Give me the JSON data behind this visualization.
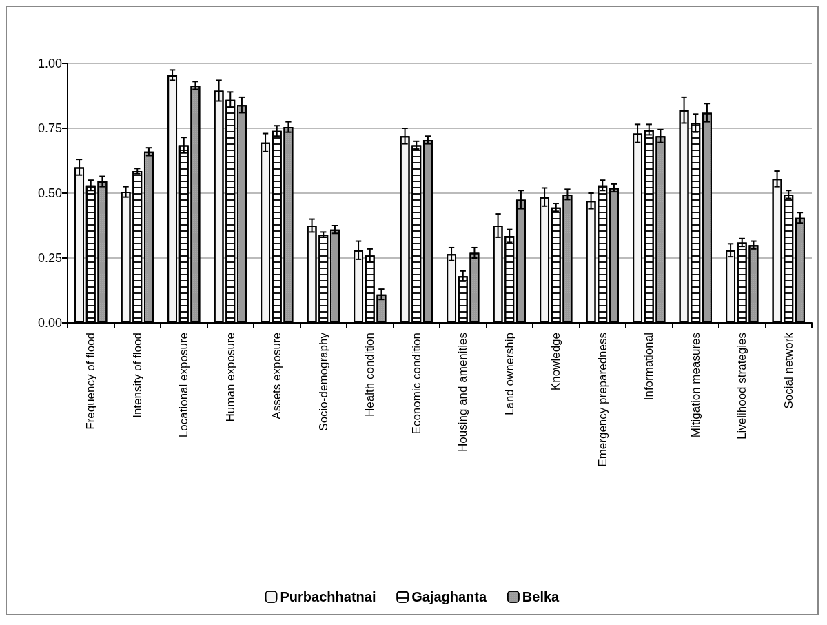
{
  "chart_data": {
    "type": "bar",
    "categories": [
      "Frequency of flood",
      "Intensity of flood",
      "Locational exposure",
      "Human exposure",
      "Assets exposure",
      "Socio-demography",
      "Health condition",
      "Economic condition",
      "Housing and amenities",
      "Land ownership",
      "Knowledge",
      "Emergency preparedness",
      "Informational",
      "Mitigation measures",
      "Livelihood strategies",
      "Social network"
    ],
    "series": [
      {
        "name": "Purbachhatnai",
        "color": "#f4f4f4",
        "values": [
          0.6,
          0.505,
          0.955,
          0.895,
          0.695,
          0.375,
          0.28,
          0.72,
          0.265,
          0.375,
          0.485,
          0.47,
          0.73,
          0.82,
          0.28,
          0.555
        ],
        "errors": [
          0.03,
          0.02,
          0.02,
          0.04,
          0.035,
          0.025,
          0.035,
          0.03,
          0.025,
          0.045,
          0.035,
          0.03,
          0.035,
          0.05,
          0.025,
          0.03
        ]
      },
      {
        "name": "Gajaghanta",
        "color": "#ffffff",
        "values": [
          0.53,
          0.585,
          0.685,
          0.86,
          0.74,
          0.34,
          0.26,
          0.685,
          0.18,
          0.335,
          0.445,
          0.53,
          0.745,
          0.77,
          0.31,
          0.495
        ],
        "errors": [
          0.02,
          0.01,
          0.03,
          0.03,
          0.02,
          0.01,
          0.025,
          0.015,
          0.02,
          0.025,
          0.015,
          0.02,
          0.02,
          0.035,
          0.015,
          0.015
        ]
      },
      {
        "name": "Belka",
        "color": "#9a9a9a",
        "values": [
          0.545,
          0.66,
          0.915,
          0.84,
          0.755,
          0.36,
          0.11,
          0.705,
          0.27,
          0.475,
          0.495,
          0.52,
          0.72,
          0.81,
          0.3,
          0.405
        ],
        "errors": [
          0.02,
          0.015,
          0.015,
          0.03,
          0.02,
          0.015,
          0.02,
          0.015,
          0.02,
          0.035,
          0.02,
          0.015,
          0.025,
          0.035,
          0.015,
          0.02
        ]
      }
    ],
    "ylim": [
      0,
      1
    ],
    "yticks": [
      {
        "value": 0,
        "label": "0.00"
      },
      {
        "value": 0.25,
        "label": "0.25"
      },
      {
        "value": 0.5,
        "label": "0.50"
      },
      {
        "value": 0.75,
        "label": "0.75"
      },
      {
        "value": 1,
        "label": "1.00"
      }
    ],
    "grid": "y",
    "legend": "bottom"
  }
}
